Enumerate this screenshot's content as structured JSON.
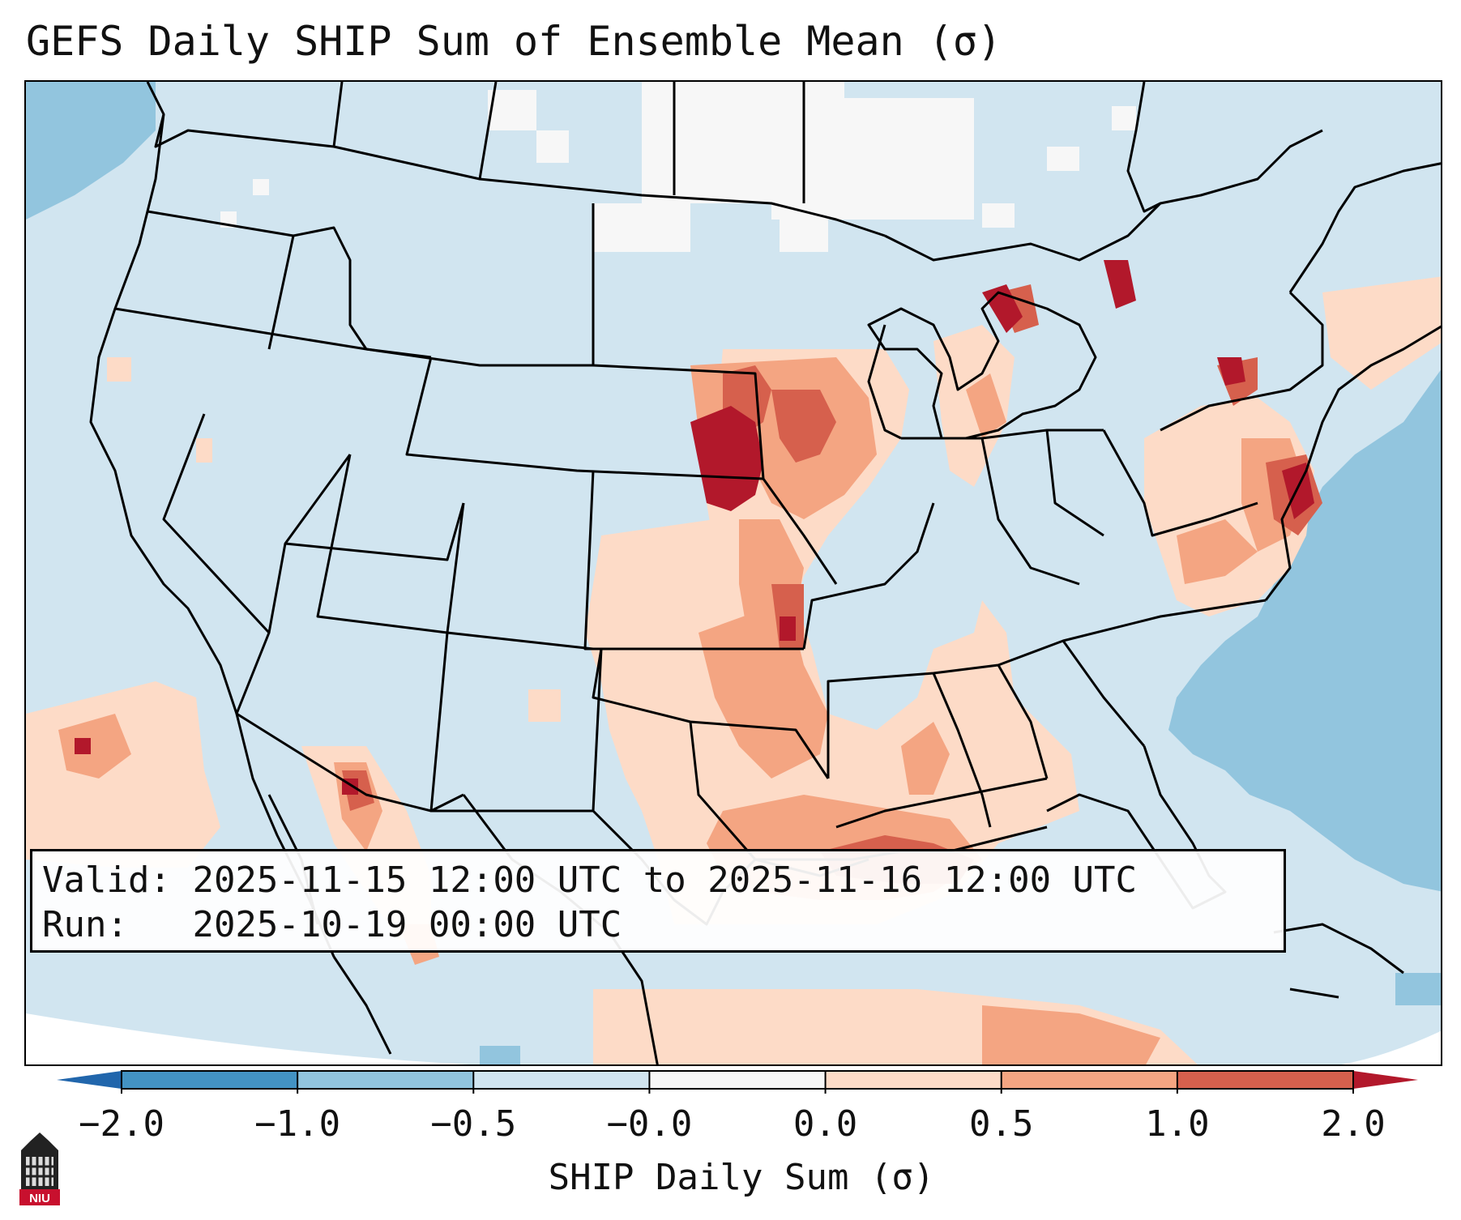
{
  "title": "GEFS Daily SHIP Sum of Ensemble Mean (σ)",
  "info": {
    "valid_label": "Valid:",
    "valid_value": "2025-11-15 12:00 UTC to 2025-11-16 12:00 UTC",
    "run_label": "Run:  ",
    "run_value": "2025-10-19 00:00 UTC"
  },
  "colorbar": {
    "label": "SHIP Daily Sum (σ)",
    "ticks": [
      "−2.0",
      "−1.0",
      "−0.5",
      "−0.0",
      "0.0",
      "0.5",
      "1.0",
      "2.0"
    ],
    "colors": [
      "#4393c3",
      "#92c5de",
      "#d1e5f0",
      "#f7f7f7",
      "#fddbc7",
      "#f4a582",
      "#d6604d"
    ],
    "extend_low": "#2166ac",
    "extend_high": "#b2182b"
  },
  "logo": {
    "text": "NIU",
    "icon": "niu-logo-icon"
  },
  "map": {
    "background_class": "-0.5 to 0.0 (light blue)",
    "palette": {
      "ocean_neg": "#92c5de",
      "neutral": "#d1e5f0",
      "near_zero": "#f7f7f7",
      "low_pos": "#fddbc7",
      "mid_pos": "#f4a582",
      "high_pos": "#d6604d",
      "extreme_pos": "#b2182b"
    }
  }
}
